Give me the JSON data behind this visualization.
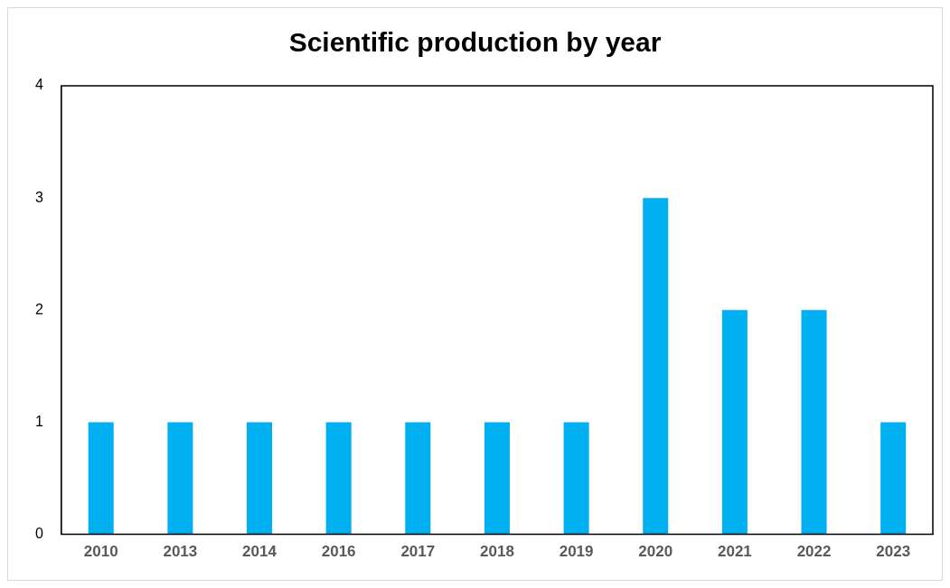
{
  "chart_data": {
    "type": "bar",
    "title": "Scientific production by year",
    "categories": [
      "2010",
      "2013",
      "2014",
      "2016",
      "2017",
      "2018",
      "2019",
      "2020",
      "2021",
      "2022",
      "2023"
    ],
    "values": [
      1,
      1,
      1,
      1,
      1,
      1,
      1,
      3,
      2,
      2,
      1
    ],
    "color": "#00b0f0",
    "ylim": [
      0,
      4
    ],
    "yticks": [
      0,
      1,
      2,
      3,
      4
    ]
  }
}
